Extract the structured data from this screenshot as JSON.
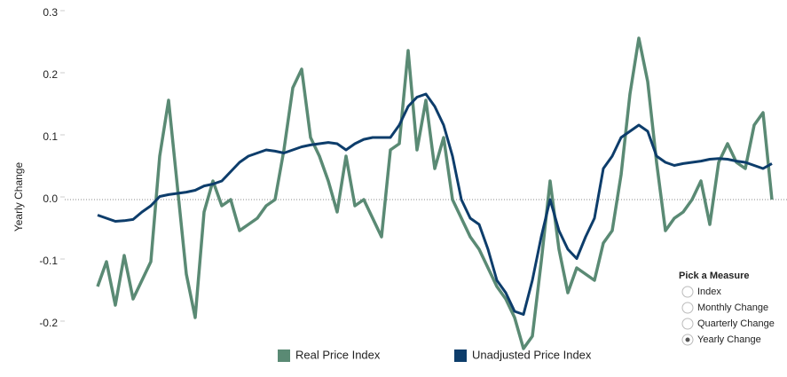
{
  "chart_data": {
    "type": "line",
    "ylabel": "Yearly Change",
    "ylim": [
      -0.26,
      0.3
    ],
    "yticks": [
      -0.2,
      -0.1,
      {
        "value": 0,
        "label": "0.0"
      },
      0.1,
      0.2,
      0.3
    ],
    "categories": [
      null,
      null,
      null,
      null,
      null,
      null,
      null,
      null,
      null,
      null,
      null,
      null,
      null,
      null,
      null,
      null,
      null,
      null,
      null,
      null,
      null,
      null,
      null,
      null,
      null,
      null,
      null,
      null,
      null,
      null,
      null,
      null,
      null,
      null,
      null,
      null,
      null,
      null,
      null,
      null,
      null,
      null,
      null,
      null,
      null,
      null,
      null,
      null,
      null,
      null,
      null,
      null,
      null,
      null,
      null,
      null,
      null,
      null,
      null,
      null,
      null,
      null,
      null,
      null,
      null,
      null,
      null,
      null,
      null,
      null,
      null,
      null,
      null,
      null,
      null,
      null,
      null
    ],
    "series": [
      {
        "name": "Real Price Index",
        "color": "#5a8a74",
        "values": [
          -0.14,
          -0.1,
          -0.17,
          -0.09,
          -0.16,
          -0.13,
          -0.1,
          0.07,
          0.16,
          0.02,
          -0.12,
          -0.19,
          -0.02,
          0.03,
          -0.01,
          0,
          -0.05,
          -0.04,
          -0.03,
          -0.01,
          0,
          0.08,
          0.18,
          0.21,
          0.1,
          0.07,
          0.03,
          -0.02,
          0.07,
          -0.01,
          0,
          -0.03,
          -0.06,
          0.08,
          0.09,
          0.24,
          0.08,
          0.16,
          0.05,
          0.1,
          0,
          -0.03,
          -0.06,
          -0.08,
          -0.11,
          -0.14,
          -0.16,
          -0.19,
          -0.24,
          -0.22,
          -0.1,
          0.03,
          -0.08,
          -0.15,
          -0.11,
          -0.12,
          -0.13,
          -0.07,
          -0.05,
          0.04,
          0.17,
          0.26,
          0.19,
          0.06,
          -0.05,
          -0.03,
          -0.02,
          0,
          0.03,
          -0.04,
          0.06,
          0.09,
          0.06,
          0.05,
          0.12,
          0.14,
          0
        ]
      },
      {
        "name": "Unadjusted Price Index",
        "color": "#0d3d6b",
        "values": [
          -0.025,
          -0.03,
          -0.035,
          -0.034,
          -0.032,
          -0.02,
          -0.01,
          0.005,
          0.008,
          0.01,
          0.012,
          0.015,
          0.022,
          0.025,
          0.03,
          0.045,
          0.06,
          0.07,
          0.075,
          0.08,
          0.078,
          0.075,
          0.08,
          0.085,
          0.088,
          0.09,
          0.092,
          0.09,
          0.08,
          0.09,
          0.097,
          0.1,
          0.1,
          0.1,
          0.12,
          0.15,
          0.165,
          0.17,
          0.15,
          0.12,
          0.07,
          0,
          -0.03,
          -0.04,
          -0.08,
          -0.13,
          -0.15,
          -0.18,
          -0.185,
          -0.13,
          -0.06,
          0,
          -0.05,
          -0.08,
          -0.095,
          -0.06,
          -0.03,
          0.05,
          0.07,
          0.1,
          0.11,
          0.12,
          0.11,
          0.07,
          0.06,
          0.055,
          0.058,
          0.06,
          0.062,
          0.065,
          0.066,
          0.065,
          0.062,
          0.06,
          0.055,
          0.05,
          0.058
        ]
      }
    ],
    "zero_line": true,
    "legend": "bottom"
  },
  "controls": {
    "title": "Pick a Measure",
    "options": [
      "Index",
      "Monthly Change",
      "Quarterly Change",
      "Yearly Change"
    ],
    "selected": "Yearly Change"
  }
}
